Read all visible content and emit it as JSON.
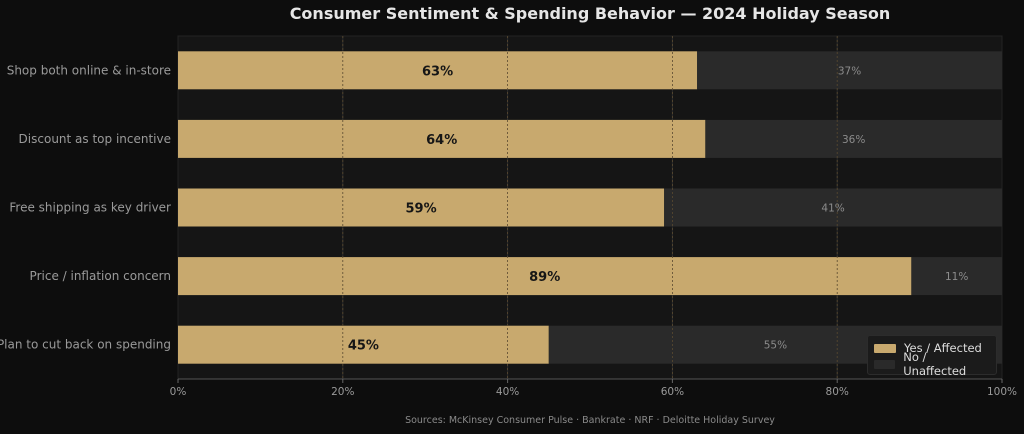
{
  "colors": {
    "yes": "#c8a96e",
    "no": "#2a2a2a",
    "plot_bg": "#151515",
    "page_bg": "#0d0d0d",
    "grid": "#2e2e2e",
    "text": "#e6e6e6",
    "muted": "#9a9a9a"
  },
  "chart_data": {
    "type": "bar",
    "orientation": "horizontal",
    "stacked": true,
    "title": "Consumer Sentiment & Spending Behavior — 2024 Holiday Season",
    "categories": [
      "Shop both online & in-store",
      "Discount as top incentive",
      "Free shipping as key driver",
      "Price / inflation concern",
      "Plan to cut back on spending"
    ],
    "series": [
      {
        "name": "Yes / Affected",
        "values": [
          63,
          64,
          59,
          89,
          45
        ]
      },
      {
        "name": "No / Unaffected",
        "values": [
          37,
          36,
          41,
          11,
          55
        ]
      }
    ],
    "yes_labels": [
      "63%",
      "64%",
      "59%",
      "89%",
      "45%"
    ],
    "no_labels": [
      "37%",
      "36%",
      "41%",
      "11%",
      "55%"
    ],
    "xlim": [
      0,
      100
    ],
    "xticks": [
      0,
      20,
      40,
      60,
      80,
      100
    ],
    "xtick_labels": [
      "0%",
      "20%",
      "40%",
      "60%",
      "80%",
      "100%"
    ],
    "grid": true,
    "legend_position": "bottom-right",
    "source_note": "Sources: McKinsey Consumer Pulse · Bankrate · NRF · Deloitte Holiday Survey"
  }
}
